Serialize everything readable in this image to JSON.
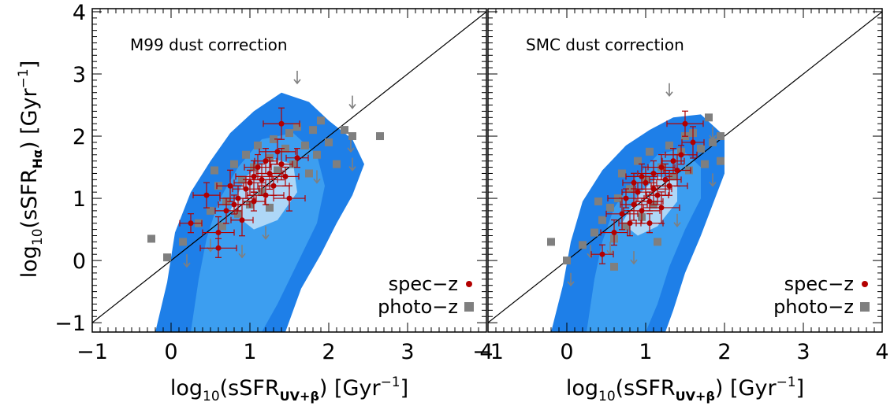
{
  "colors": {
    "contour_outer": "#1E7FE8",
    "contour_mid": "#3C9EF0",
    "contour_inner": "#AED7F7",
    "spec_z": "#B30000",
    "photo_z": "#7F7F7F",
    "arrow": "#7F7F7F",
    "one_to_one": "#000000"
  },
  "chart_data": [
    {
      "type": "scatter",
      "title": "M99 dust correction",
      "xlabel": "log10(sSFR_UV+β) [Gyr^-1]",
      "ylabel": "log10(sSFR_Hα) [Gyr^-1]",
      "xlim": [
        -1,
        4
      ],
      "ylim": [
        -1.15,
        4.05
      ],
      "xticks": [
        "−1",
        "0",
        "1",
        "2",
        "3",
        "4"
      ],
      "yticks": [
        "−1",
        "0",
        "1",
        "2",
        "3",
        "4"
      ],
      "reference_line": "1:1",
      "legend_position": "bottom-right",
      "contour_levels": [
        {
          "level": "outer",
          "polygon": [
            [
              -0.2,
              -1.15
            ],
            [
              -0.05,
              -0.35
            ],
            [
              0.05,
              0.45
            ],
            [
              0.25,
              1.1
            ],
            [
              0.5,
              1.6
            ],
            [
              0.75,
              2.05
            ],
            [
              1.05,
              2.4
            ],
            [
              1.4,
              2.7
            ],
            [
              1.75,
              2.55
            ],
            [
              2.0,
              2.25
            ],
            [
              2.3,
              1.95
            ],
            [
              2.45,
              1.55
            ],
            [
              2.3,
              1.05
            ],
            [
              2.1,
              0.6
            ],
            [
              1.9,
              0.1
            ],
            [
              1.65,
              -0.45
            ],
            [
              1.45,
              -1.15
            ]
          ]
        },
        {
          "level": "mid",
          "polygon": [
            [
              0.25,
              -1.15
            ],
            [
              0.35,
              -0.3
            ],
            [
              0.45,
              0.35
            ],
            [
              0.6,
              0.95
            ],
            [
              0.85,
              1.5
            ],
            [
              1.15,
              1.95
            ],
            [
              1.55,
              2.05
            ],
            [
              1.85,
              1.7
            ],
            [
              1.95,
              1.2
            ],
            [
              1.85,
              0.6
            ],
            [
              1.6,
              -0.05
            ],
            [
              1.35,
              -0.7
            ],
            [
              1.15,
              -1.15
            ]
          ]
        },
        {
          "level": "inner",
          "polygon": [
            [
              0.75,
              0.8
            ],
            [
              0.95,
              1.35
            ],
            [
              1.25,
              1.65
            ],
            [
              1.55,
              1.55
            ],
            [
              1.6,
              1.1
            ],
            [
              1.35,
              0.65
            ],
            [
              1.05,
              0.5
            ]
          ]
        }
      ],
      "series": [
        {
          "name": "spec-z",
          "marker": "circle",
          "points": [
            [
              0.25,
              0.6
            ],
            [
              0.45,
              1.05
            ],
            [
              0.6,
              0.45
            ],
            [
              0.6,
              0.2
            ],
            [
              0.7,
              0.8
            ],
            [
              0.75,
              1.2
            ],
            [
              0.8,
              0.9
            ],
            [
              0.85,
              1.0
            ],
            [
              0.9,
              0.65
            ],
            [
              0.95,
              1.15
            ],
            [
              1.0,
              1.25
            ],
            [
              1.05,
              1.35
            ],
            [
              1.05,
              0.95
            ],
            [
              1.1,
              1.5
            ],
            [
              1.15,
              1.3
            ],
            [
              1.2,
              1.05
            ],
            [
              1.2,
              1.6
            ],
            [
              1.25,
              1.4
            ],
            [
              1.3,
              1.2
            ],
            [
              1.35,
              1.75
            ],
            [
              1.4,
              1.55
            ],
            [
              1.45,
              1.35
            ],
            [
              1.5,
              1.0
            ],
            [
              1.4,
              2.2
            ],
            [
              1.6,
              1.65
            ]
          ]
        },
        {
          "name": "photo-z",
          "marker": "square",
          "points": [
            [
              -0.25,
              0.35
            ],
            [
              -0.05,
              0.05
            ],
            [
              0.15,
              0.3
            ],
            [
              0.35,
              0.6
            ],
            [
              0.5,
              0.8
            ],
            [
              0.6,
              1.2
            ],
            [
              0.65,
              0.55
            ],
            [
              0.7,
              0.95
            ],
            [
              0.8,
              1.55
            ],
            [
              0.85,
              0.75
            ],
            [
              0.9,
              1.3
            ],
            [
              0.95,
              1.7
            ],
            [
              1.0,
              0.9
            ],
            [
              1.05,
              1.5
            ],
            [
              1.1,
              1.85
            ],
            [
              1.15,
              1.1
            ],
            [
              1.25,
              1.65
            ],
            [
              1.3,
              1.95
            ],
            [
              1.35,
              1.45
            ],
            [
              1.45,
              1.8
            ],
            [
              1.5,
              2.05
            ],
            [
              1.55,
              1.55
            ],
            [
              1.6,
              2.15
            ],
            [
              1.7,
              1.85
            ],
            [
              1.75,
              1.4
            ],
            [
              1.8,
              2.1
            ],
            [
              1.85,
              1.7
            ],
            [
              1.9,
              2.25
            ],
            [
              2.0,
              1.9
            ],
            [
              2.1,
              1.55
            ],
            [
              2.2,
              2.1
            ],
            [
              2.3,
              2.0
            ],
            [
              2.65,
              2.0
            ],
            [
              1.25,
              0.85
            ],
            [
              0.55,
              1.45
            ]
          ]
        },
        {
          "name": "upper-limit",
          "marker": "down-arrow",
          "points": [
            [
              1.6,
              2.95
            ],
            [
              2.3,
              2.55
            ],
            [
              2.28,
              1.85
            ],
            [
              2.3,
              1.55
            ],
            [
              0.2,
              0.0
            ],
            [
              0.5,
              0.25
            ],
            [
              0.9,
              0.15
            ],
            [
              1.2,
              0.45
            ],
            [
              1.85,
              1.35
            ]
          ]
        }
      ]
    },
    {
      "type": "scatter",
      "title": "SMC dust correction",
      "xlabel": "log10(sSFR_UV+β) [Gyr^-1]",
      "ylabel": "",
      "xlim": [
        -1,
        4
      ],
      "ylim": [
        -1.15,
        4.05
      ],
      "xticks": [
        "−1",
        "0",
        "1",
        "2",
        "3",
        "4"
      ],
      "yticks": [],
      "reference_line": "1:1",
      "legend_position": "bottom-right",
      "contour_levels": [
        {
          "level": "outer",
          "polygon": [
            [
              -0.2,
              -1.15
            ],
            [
              -0.05,
              -0.4
            ],
            [
              0.05,
              0.3
            ],
            [
              0.2,
              0.95
            ],
            [
              0.45,
              1.45
            ],
            [
              0.75,
              1.85
            ],
            [
              1.05,
              2.1
            ],
            [
              1.35,
              2.3
            ],
            [
              1.7,
              2.35
            ],
            [
              2.0,
              2.0
            ],
            [
              2.0,
              1.4
            ],
            [
              1.85,
              0.9
            ],
            [
              1.7,
              0.4
            ],
            [
              1.5,
              -0.2
            ],
            [
              1.35,
              -0.8
            ],
            [
              1.25,
              -1.15
            ]
          ]
        },
        {
          "level": "mid",
          "polygon": [
            [
              0.25,
              -1.15
            ],
            [
              0.35,
              -0.3
            ],
            [
              0.45,
              0.3
            ],
            [
              0.6,
              0.85
            ],
            [
              0.85,
              1.3
            ],
            [
              1.15,
              1.7
            ],
            [
              1.45,
              1.8
            ],
            [
              1.7,
              1.5
            ],
            [
              1.7,
              1.0
            ],
            [
              1.5,
              0.5
            ],
            [
              1.3,
              -0.1
            ],
            [
              1.15,
              -0.7
            ],
            [
              1.0,
              -1.15
            ]
          ]
        },
        {
          "level": "inner",
          "polygon": [
            [
              0.7,
              0.6
            ],
            [
              0.9,
              1.05
            ],
            [
              1.15,
              1.35
            ],
            [
              1.4,
              1.3
            ],
            [
              1.4,
              0.95
            ],
            [
              1.15,
              0.55
            ],
            [
              0.9,
              0.4
            ]
          ]
        }
      ],
      "series": [
        {
          "name": "spec-z",
          "marker": "circle",
          "points": [
            [
              0.45,
              0.1
            ],
            [
              0.6,
              0.45
            ],
            [
              0.7,
              0.75
            ],
            [
              0.75,
              1.0
            ],
            [
              0.8,
              0.6
            ],
            [
              0.85,
              0.9
            ],
            [
              0.9,
              1.1
            ],
            [
              0.95,
              0.8
            ],
            [
              1.0,
              1.25
            ],
            [
              1.05,
              0.95
            ],
            [
              1.1,
              1.4
            ],
            [
              1.1,
              1.15
            ],
            [
              1.15,
              1.05
            ],
            [
              1.2,
              1.5
            ],
            [
              1.25,
              1.3
            ],
            [
              1.3,
              1.2
            ],
            [
              1.35,
              1.6
            ],
            [
              1.4,
              1.45
            ],
            [
              1.45,
              1.7
            ],
            [
              1.5,
              2.2
            ],
            [
              1.6,
              1.9
            ],
            [
              1.05,
              0.6
            ],
            [
              0.95,
              1.35
            ],
            [
              1.2,
              0.85
            ],
            [
              0.85,
              1.25
            ]
          ]
        },
        {
          "name": "photo-z",
          "marker": "square",
          "points": [
            [
              -0.2,
              0.3
            ],
            [
              0.0,
              0.0
            ],
            [
              0.2,
              0.25
            ],
            [
              0.35,
              0.45
            ],
            [
              0.45,
              0.65
            ],
            [
              0.55,
              0.85
            ],
            [
              0.6,
              0.35
            ],
            [
              0.65,
              1.0
            ],
            [
              0.7,
              1.4
            ],
            [
              0.75,
              0.55
            ],
            [
              0.8,
              1.15
            ],
            [
              0.9,
              1.6
            ],
            [
              0.95,
              0.7
            ],
            [
              1.0,
              1.3
            ],
            [
              1.05,
              1.75
            ],
            [
              1.1,
              0.9
            ],
            [
              1.2,
              1.5
            ],
            [
              1.3,
              1.85
            ],
            [
              1.35,
              1.35
            ],
            [
              1.45,
              1.75
            ],
            [
              1.5,
              2.0
            ],
            [
              1.55,
              1.45
            ],
            [
              1.6,
              2.05
            ],
            [
              1.7,
              1.8
            ],
            [
              1.75,
              1.55
            ],
            [
              1.8,
              2.3
            ],
            [
              1.85,
              1.9
            ],
            [
              1.95,
              2.0
            ],
            [
              1.95,
              1.6
            ],
            [
              0.6,
              -0.1
            ],
            [
              0.4,
              0.95
            ],
            [
              1.15,
              0.3
            ]
          ]
        },
        {
          "name": "upper-limit",
          "marker": "down-arrow",
          "points": [
            [
              1.3,
              2.75
            ],
            [
              1.85,
              2.05
            ],
            [
              1.85,
              1.3
            ],
            [
              0.05,
              -0.3
            ],
            [
              0.3,
              0.15
            ],
            [
              0.55,
              0.2
            ],
            [
              1.4,
              0.65
            ],
            [
              0.85,
              0.05
            ]
          ]
        }
      ]
    }
  ],
  "legend": {
    "spec_label": "spec−z",
    "photo_label": "photo−z"
  },
  "figure": {
    "xlabel_main": "log",
    "xlabel_sub": "10",
    "xlabel_paren": "(sSFR",
    "xlabel_index": "UV+β",
    "xlabel_tail": ")  [Gyr",
    "xlabel_exp": "−1",
    "xlabel_end": "]",
    "ylabel_main": "log",
    "ylabel_sub": "10",
    "ylabel_paren": "(sSFR",
    "ylabel_index": "Hα",
    "ylabel_tail": ")  [Gyr",
    "ylabel_exp": "−1",
    "ylabel_end": "]"
  }
}
